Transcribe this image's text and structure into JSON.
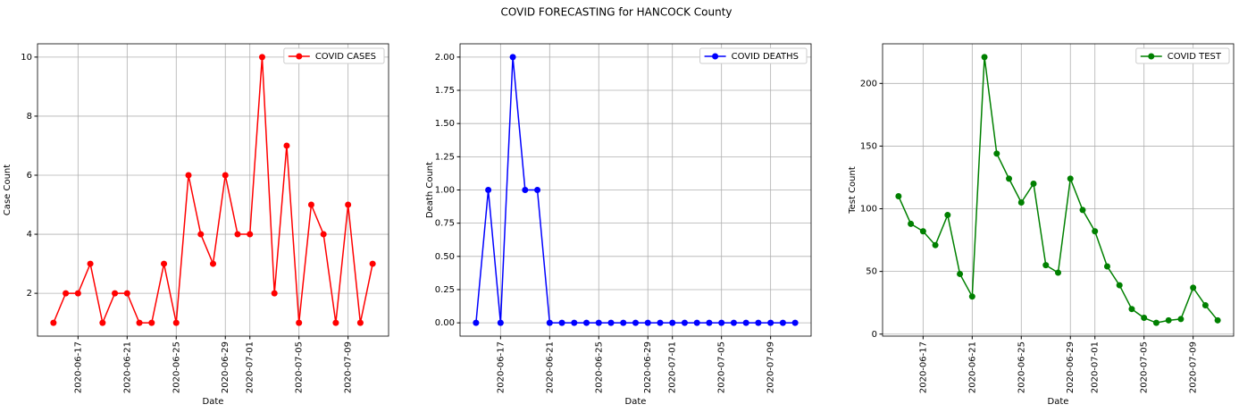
{
  "title": "COVID FORECASTING for HANCOCK County",
  "chart_data": [
    {
      "type": "line",
      "xlabel": "Date",
      "ylabel": "Case Count",
      "grid": true,
      "legend": "upper right",
      "x": [
        "2020-06-15",
        "2020-06-16",
        "2020-06-17",
        "2020-06-18",
        "2020-06-19",
        "2020-06-20",
        "2020-06-21",
        "2020-06-22",
        "2020-06-23",
        "2020-06-24",
        "2020-06-25",
        "2020-06-26",
        "2020-06-27",
        "2020-06-28",
        "2020-06-29",
        "2020-06-30",
        "2020-07-01",
        "2020-07-02",
        "2020-07-03",
        "2020-07-04",
        "2020-07-05",
        "2020-07-06",
        "2020-07-07",
        "2020-07-08",
        "2020-07-09",
        "2020-07-10",
        "2020-07-11"
      ],
      "xticks": [
        "2020-06-17",
        "2020-06-21",
        "2020-06-25",
        "2020-06-29",
        "2020-07-01",
        "2020-07-05",
        "2020-07-09"
      ],
      "ylim": [
        0.55,
        10.45
      ],
      "yticks": [
        2,
        4,
        6,
        8,
        10
      ],
      "series": [
        {
          "name": "COVID CASES",
          "color": "#ff0000",
          "values": [
            1,
            2,
            2,
            3,
            1,
            2,
            2,
            1,
            1,
            3,
            1,
            6,
            4,
            3,
            6,
            4,
            4,
            10,
            2,
            7,
            1,
            5,
            4,
            1,
            5,
            1,
            3
          ]
        }
      ]
    },
    {
      "type": "line",
      "xlabel": "Date",
      "ylabel": "Death Count",
      "grid": true,
      "legend": "upper right",
      "x": [
        "2020-06-15",
        "2020-06-16",
        "2020-06-17",
        "2020-06-18",
        "2020-06-19",
        "2020-06-20",
        "2020-06-21",
        "2020-06-22",
        "2020-06-23",
        "2020-06-24",
        "2020-06-25",
        "2020-06-26",
        "2020-06-27",
        "2020-06-28",
        "2020-06-29",
        "2020-06-30",
        "2020-07-01",
        "2020-07-02",
        "2020-07-03",
        "2020-07-04",
        "2020-07-05",
        "2020-07-06",
        "2020-07-07",
        "2020-07-08",
        "2020-07-09",
        "2020-07-10",
        "2020-07-11"
      ],
      "xticks": [
        "2020-06-17",
        "2020-06-21",
        "2020-06-25",
        "2020-06-29",
        "2020-07-01",
        "2020-07-05",
        "2020-07-09"
      ],
      "ylim": [
        -0.1,
        2.1
      ],
      "yticks": [
        {
          "value": 0,
          "label": "0.00"
        },
        {
          "value": 0.25,
          "label": "0.25"
        },
        {
          "value": 0.5,
          "label": "0.50"
        },
        {
          "value": 0.75,
          "label": "0.75"
        },
        {
          "value": 1,
          "label": "1.00"
        },
        {
          "value": 1.25,
          "label": "1.25"
        },
        {
          "value": 1.5,
          "label": "1.50"
        },
        {
          "value": 1.75,
          "label": "1.75"
        },
        {
          "value": 2,
          "label": "2.00"
        }
      ],
      "series": [
        {
          "name": "COVID DEATHS",
          "color": "#0000ff",
          "values": [
            0,
            1,
            0,
            2,
            1,
            1,
            0,
            0,
            0,
            0,
            0,
            0,
            0,
            0,
            0,
            0,
            0,
            0,
            0,
            0,
            0,
            0,
            0,
            0,
            0,
            0,
            0
          ]
        }
      ]
    },
    {
      "type": "line",
      "xlabel": "Date",
      "ylabel": "Test Count",
      "grid": true,
      "legend": "upper right",
      "x": [
        "2020-06-15",
        "2020-06-16",
        "2020-06-17",
        "2020-06-18",
        "2020-06-19",
        "2020-06-20",
        "2020-06-21",
        "2020-06-22",
        "2020-06-23",
        "2020-06-24",
        "2020-06-25",
        "2020-06-26",
        "2020-06-27",
        "2020-06-28",
        "2020-06-29",
        "2020-06-30",
        "2020-07-01",
        "2020-07-02",
        "2020-07-03",
        "2020-07-04",
        "2020-07-05",
        "2020-07-06",
        "2020-07-07",
        "2020-07-08",
        "2020-07-09",
        "2020-07-10",
        "2020-07-11"
      ],
      "xticks": [
        "2020-06-17",
        "2020-06-21",
        "2020-06-25",
        "2020-06-29",
        "2020-07-01",
        "2020-07-05",
        "2020-07-09"
      ],
      "ylim": [
        -1.6,
        231.6
      ],
      "yticks": [
        0,
        50,
        100,
        150,
        200
      ],
      "series": [
        {
          "name": "COVID TEST",
          "color": "#008000",
          "values": [
            110,
            88,
            82,
            71,
            95,
            48,
            30,
            221,
            144,
            124,
            105,
            120,
            55,
            49,
            124,
            99,
            82,
            54,
            39,
            20,
            13,
            9,
            11,
            12,
            37,
            23,
            11
          ]
        }
      ]
    }
  ]
}
